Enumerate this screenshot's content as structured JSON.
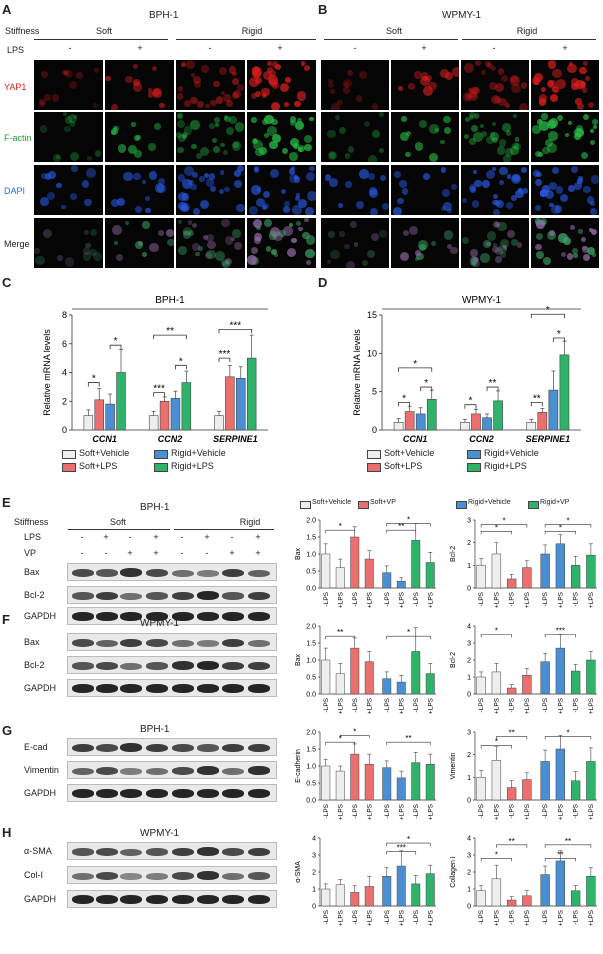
{
  "panelA": {
    "letter": "A",
    "title": "BPH-1",
    "stiffness_label": "Stiffness",
    "lps_label": "LPS",
    "groups": [
      "Soft",
      "Rigid"
    ],
    "lps_states": [
      "-",
      "+",
      "-",
      "+"
    ],
    "rows": [
      "YAP1",
      "F-actin",
      "DAPI",
      "Merge"
    ],
    "row_colors": [
      "#d62020",
      "#1f9d3a",
      "#1f6fd6",
      "#222222"
    ]
  },
  "panelB": {
    "letter": "B",
    "title": "WPMY-1",
    "groups": [
      "Soft",
      "Rigid"
    ],
    "lps_states": [
      "-",
      "+",
      "-",
      "+"
    ]
  },
  "panelC": {
    "letter": "C"
  },
  "panelD": {
    "letter": "D"
  },
  "panelE": {
    "letter": "E",
    "title": "BPH-1",
    "stiffness_label": "Stiffness",
    "groups": [
      "Soft",
      "Rigid"
    ],
    "row_labels": [
      "LPS",
      "VP"
    ],
    "lps_signs": [
      "-",
      "+",
      "-",
      "+",
      "-",
      "+",
      "-",
      "+"
    ],
    "vp_signs": [
      "-",
      "-",
      "+",
      "+",
      "-",
      "-",
      "+",
      "+"
    ],
    "blots": [
      "Bax",
      "Bcl-2",
      "GAPDH"
    ]
  },
  "panelF": {
    "letter": "F",
    "title": "WPMY-1",
    "blots": [
      "Bax",
      "Bcl-2",
      "GAPDH"
    ]
  },
  "panelG": {
    "letter": "G",
    "title": "BPH-1",
    "blots": [
      "E-cad",
      "Vimentin",
      "GAPDH"
    ]
  },
  "panelH": {
    "letter": "H",
    "title": "WPMY-1",
    "blots": [
      "α-SMA",
      "Col-I",
      "GAPDH"
    ]
  },
  "legend_bottom": {
    "items": [
      "Soft+Vehicle",
      "Rigid+Vehicle",
      "Soft+LPS",
      "Rigid+LPS"
    ],
    "colors": [
      "#eeeeee",
      "#4a8fd1",
      "#ec6f6f",
      "#2fb36a"
    ]
  },
  "legend_top": {
    "items": [
      "Soft+Vehicle",
      "Soft+VP",
      "Rigid+Vehicle",
      "Rigid+VP"
    ],
    "colors": [
      "#eeeeee",
      "#ec6f6f",
      "#4a8fd1",
      "#2fb36a"
    ]
  },
  "colors": {
    "soft": "#eeeeee",
    "red": "#ec6f6f",
    "blue": "#4a8fd1",
    "green": "#2fb36a"
  },
  "chart_data": [
    {
      "type": "bar",
      "title": "BPH-1",
      "ylabel": "Relative mRNA levels",
      "ylim": [
        0,
        8
      ],
      "yticks": [
        0,
        2,
        4,
        6,
        8
      ],
      "categories": [
        "CCN1",
        "CCN2",
        "SERPINE1"
      ],
      "series": [
        {
          "name": "Soft+Vehicle",
          "values": [
            1.0,
            1.0,
            1.0
          ],
          "errors": [
            0.4,
            0.3,
            0.3
          ]
        },
        {
          "name": "Soft+LPS",
          "values": [
            2.1,
            2.0,
            3.7
          ],
          "errors": [
            0.8,
            0.3,
            0.8
          ]
        },
        {
          "name": "Rigid+Vehicle",
          "values": [
            1.8,
            2.2,
            3.6
          ],
          "errors": [
            0.7,
            0.5,
            0.8
          ]
        },
        {
          "name": "Rigid+LPS",
          "values": [
            4.0,
            3.3,
            5.0
          ],
          "errors": [
            1.6,
            0.8,
            1.6
          ]
        }
      ],
      "sig_labels": [
        "*",
        "*",
        "***",
        "*",
        "**",
        "***",
        "***"
      ]
    },
    {
      "type": "bar",
      "title": "WPMY-1",
      "ylabel": "Relative mRNA levels",
      "ylim": [
        0,
        15
      ],
      "yticks": [
        0,
        5,
        10,
        15
      ],
      "categories": [
        "CCN1",
        "CCN2",
        "SERPINE1"
      ],
      "series": [
        {
          "name": "Soft+Vehicle",
          "values": [
            1.0,
            1.0,
            1.0
          ],
          "errors": [
            0.5,
            0.4,
            0.4
          ]
        },
        {
          "name": "Soft+LPS",
          "values": [
            2.4,
            2.1,
            2.3
          ],
          "errors": [
            0.7,
            0.6,
            0.5
          ]
        },
        {
          "name": "Rigid+Vehicle",
          "values": [
            2.1,
            1.6,
            5.2
          ],
          "errors": [
            0.8,
            0.5,
            2.5
          ]
        },
        {
          "name": "Rigid+LPS",
          "values": [
            4.0,
            3.8,
            9.8
          ],
          "errors": [
            1.2,
            1.3,
            1.8
          ]
        }
      ],
      "sig_labels": [
        "*",
        "*",
        "*",
        "*",
        "**",
        "**",
        "*",
        "*"
      ]
    },
    {
      "type": "bar",
      "ylabel": "Bax",
      "ylim": [
        0,
        2
      ],
      "yticks": [
        0.0,
        0.5,
        1.0,
        1.5,
        2.0
      ],
      "categories": [
        "-LPS",
        "+LPS",
        "-LPS",
        "+LPS",
        "-LPS",
        "+LPS",
        "-LPS",
        "+LPS"
      ],
      "values": [
        1.0,
        0.6,
        1.5,
        0.85,
        0.45,
        0.2,
        1.4,
        0.75
      ],
      "errors": [
        0.3,
        0.25,
        0.3,
        0.25,
        0.2,
        0.1,
        0.5,
        0.3
      ],
      "sig_labels": [
        "*",
        "**",
        "*"
      ]
    },
    {
      "type": "bar",
      "ylabel": "Bcl-2",
      "ylim": [
        0,
        3
      ],
      "yticks": [
        0,
        1,
        2,
        3
      ],
      "categories": [
        "-LPS",
        "+LPS",
        "-LPS",
        "+LPS",
        "-LPS",
        "+LPS",
        "-LPS",
        "+LPS"
      ],
      "values": [
        1.0,
        1.5,
        0.4,
        0.9,
        1.5,
        1.95,
        1.0,
        1.45
      ],
      "errors": [
        0.3,
        0.5,
        0.2,
        0.3,
        0.4,
        0.4,
        0.4,
        0.5
      ],
      "sig_labels": [
        "*",
        "*",
        "*",
        "*"
      ]
    },
    {
      "type": "bar",
      "ylabel": "Bax",
      "ylim": [
        0,
        2
      ],
      "yticks": [
        0.0,
        0.5,
        1.0,
        1.5,
        2.0
      ],
      "categories": [
        "-LPS",
        "+LPS",
        "-LPS",
        "+LPS",
        "-LPS",
        "+LPS",
        "-LPS",
        "+LPS"
      ],
      "values": [
        1.0,
        0.6,
        1.35,
        0.95,
        0.45,
        0.35,
        1.25,
        0.6
      ],
      "errors": [
        0.35,
        0.3,
        0.3,
        0.3,
        0.2,
        0.2,
        0.7,
        0.3
      ],
      "sig_labels": [
        "**",
        "*"
      ]
    },
    {
      "type": "bar",
      "ylabel": "Bcl-2",
      "ylim": [
        0,
        4
      ],
      "yticks": [
        0,
        1,
        2,
        3,
        4
      ],
      "categories": [
        "-LPS",
        "+LPS",
        "-LPS",
        "+LPS",
        "-LPS",
        "+LPS",
        "-LPS",
        "+LPS"
      ],
      "values": [
        1.0,
        1.3,
        0.35,
        1.1,
        1.9,
        2.7,
        1.35,
        2.0
      ],
      "errors": [
        0.3,
        0.5,
        0.2,
        0.4,
        0.5,
        0.8,
        0.4,
        0.5
      ],
      "sig_labels": [
        "*",
        "***"
      ]
    },
    {
      "type": "bar",
      "ylabel": "E-cadherin",
      "ylim": [
        0,
        2
      ],
      "yticks": [
        0.0,
        0.5,
        1.0,
        1.5,
        2.0
      ],
      "categories": [
        "-LPS",
        "+LPS",
        "-LPS",
        "+LPS",
        "-LPS",
        "+LPS",
        "-LPS",
        "+LPS"
      ],
      "values": [
        1.0,
        0.85,
        1.35,
        1.05,
        0.95,
        0.65,
        1.1,
        1.05
      ],
      "errors": [
        0.2,
        0.15,
        0.3,
        0.3,
        0.2,
        0.2,
        0.3,
        0.3
      ],
      "sig_labels": [
        "*",
        "*",
        "**"
      ]
    },
    {
      "type": "bar",
      "ylabel": "Vimentin",
      "ylim": [
        0,
        3
      ],
      "yticks": [
        0,
        1,
        2,
        3
      ],
      "categories": [
        "-LPS",
        "+LPS",
        "-LPS",
        "+LPS",
        "-LPS",
        "+LPS",
        "-LPS",
        "+LPS"
      ],
      "values": [
        1.0,
        1.75,
        0.55,
        0.9,
        1.7,
        2.25,
        0.85,
        1.7
      ],
      "errors": [
        0.3,
        0.6,
        0.3,
        0.3,
        0.5,
        0.6,
        0.4,
        0.6
      ],
      "sig_labels": [
        "*",
        "**",
        "*"
      ]
    },
    {
      "type": "bar",
      "ylabel": "α-SMA",
      "ylim": [
        0,
        4
      ],
      "yticks": [
        0,
        1,
        2,
        3,
        4
      ],
      "categories": [
        "-LPS",
        "+LPS",
        "-LPS",
        "+LPS",
        "-LPS",
        "+LPS",
        "-LPS",
        "+LPS"
      ],
      "values": [
        1.0,
        1.25,
        0.8,
        1.15,
        1.75,
        2.35,
        1.3,
        1.9
      ],
      "errors": [
        0.3,
        0.3,
        0.4,
        0.6,
        0.5,
        0.9,
        0.5,
        0.5
      ],
      "sig_labels": [
        "***",
        "*"
      ]
    },
    {
      "type": "bar",
      "ylabel": "Collagen I",
      "ylim": [
        0,
        4
      ],
      "yticks": [
        0,
        1,
        2,
        3,
        4
      ],
      "categories": [
        "-LPS",
        "+LPS",
        "-LPS",
        "+LPS",
        "-LPS",
        "+LPS",
        "-LPS",
        "+LPS"
      ],
      "values": [
        0.9,
        1.6,
        0.35,
        0.6,
        1.85,
        2.65,
        0.9,
        1.75
      ],
      "errors": [
        0.3,
        0.8,
        0.2,
        0.3,
        0.5,
        0.6,
        0.3,
        0.5
      ],
      "sig_labels": [
        "*",
        "**",
        "**",
        "**"
      ]
    }
  ]
}
